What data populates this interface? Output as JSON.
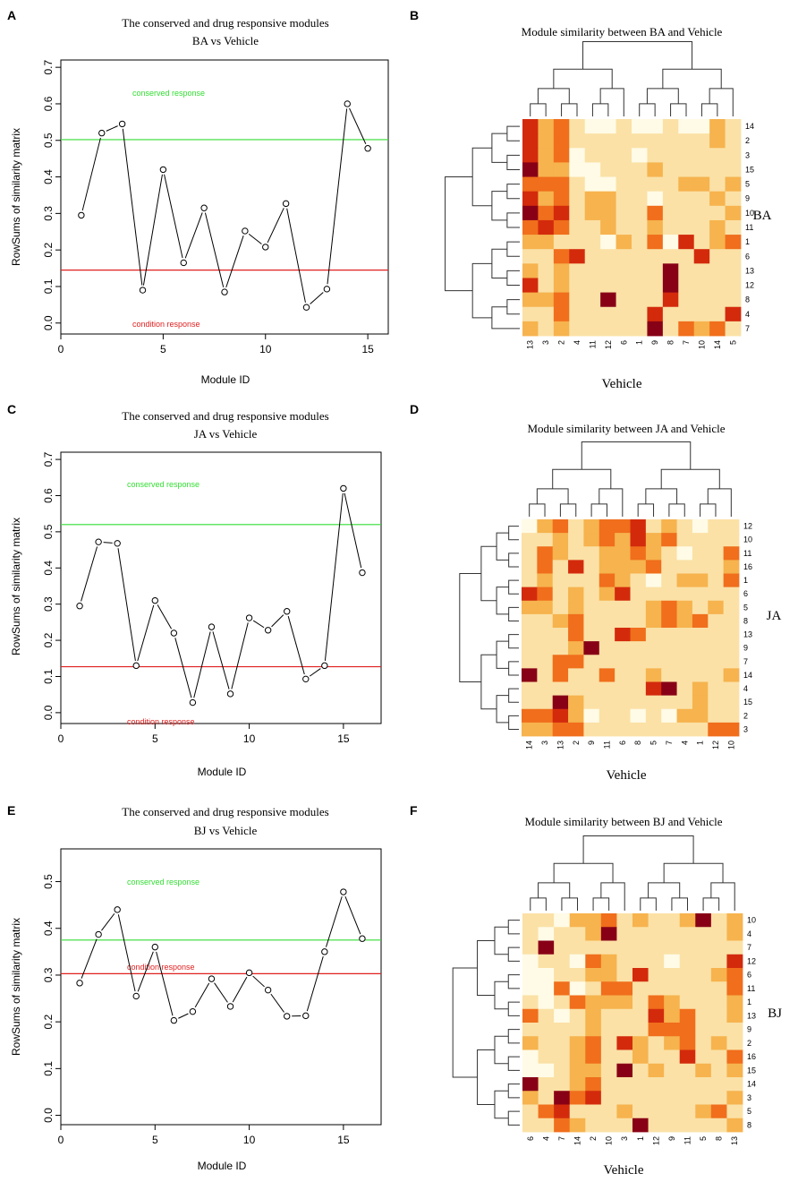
{
  "chart_data": [
    {
      "panel": "A",
      "type": "line",
      "title": "The conserved and drug responsive modules",
      "subtitle": "BA vs Vehicle",
      "xlabel": "Module ID",
      "ylabel": "RowSums of similarity matrix",
      "xlim": [
        0,
        16
      ],
      "ylim": [
        -0.03,
        0.72
      ],
      "xticks": [
        0,
        5,
        10,
        15
      ],
      "yticks": [
        0.0,
        0.1,
        0.2,
        0.3,
        0.4,
        0.5,
        0.6,
        0.7
      ],
      "x": [
        1,
        2,
        3,
        4,
        5,
        6,
        7,
        8,
        9,
        10,
        11,
        12,
        13,
        14,
        15
      ],
      "y": [
        0.295,
        0.52,
        0.545,
        0.09,
        0.42,
        0.165,
        0.315,
        0.085,
        0.252,
        0.208,
        0.327,
        0.043,
        0.093,
        0.6,
        0.478
      ],
      "conserved_line": 0.502,
      "condition_line": 0.145,
      "conserved_label": "conserved response",
      "condition_label": "condition response",
      "conserved_color": "#33dd33",
      "condition_color": "#e02020"
    },
    {
      "panel": "B",
      "type": "heatmap",
      "title": "Module similarity between BA and Vehicle",
      "xlabel": "Vehicle",
      "ylabel": "BA",
      "col_labels": [
        "13",
        "3",
        "2",
        "4",
        "11",
        "12",
        "6",
        "1",
        "9",
        "8",
        "7",
        "10",
        "14",
        "5"
      ],
      "row_labels": [
        "14",
        "2",
        "3",
        "15",
        "5",
        "9",
        "10",
        "11",
        "1",
        "6",
        "13",
        "12",
        "8",
        "4",
        "7"
      ],
      "values": [
        [
          4,
          2,
          3,
          1,
          0,
          0,
          1,
          0,
          0,
          1,
          0,
          0,
          2,
          1
        ],
        [
          4,
          2,
          3,
          1,
          1,
          1,
          1,
          1,
          1,
          1,
          1,
          1,
          2,
          1
        ],
        [
          4,
          2,
          3,
          0,
          1,
          1,
          1,
          0,
          1,
          1,
          1,
          1,
          1,
          1
        ],
        [
          5,
          2,
          2,
          0,
          0,
          1,
          1,
          1,
          2,
          1,
          1,
          1,
          1,
          1
        ],
        [
          3,
          3,
          3,
          1,
          0,
          0,
          1,
          1,
          1,
          1,
          2,
          2,
          1,
          2
        ],
        [
          4,
          2,
          3,
          1,
          2,
          2,
          1,
          1,
          0,
          1,
          1,
          1,
          2,
          1
        ],
        [
          5,
          3,
          4,
          1,
          2,
          2,
          1,
          1,
          3,
          1,
          1,
          1,
          1,
          2
        ],
        [
          3,
          4,
          3,
          1,
          1,
          2,
          1,
          1,
          2,
          1,
          1,
          1,
          2,
          1
        ],
        [
          2,
          2,
          1,
          1,
          1,
          0,
          2,
          1,
          3,
          0,
          4,
          1,
          2,
          3
        ],
        [
          1,
          1,
          3,
          4,
          1,
          1,
          1,
          1,
          1,
          1,
          1,
          4,
          1,
          1
        ],
        [
          2,
          1,
          2,
          1,
          1,
          1,
          1,
          1,
          1,
          5,
          1,
          1,
          1,
          1
        ],
        [
          4,
          1,
          2,
          1,
          1,
          1,
          1,
          1,
          1,
          5,
          1,
          1,
          1,
          1
        ],
        [
          2,
          2,
          3,
          1,
          1,
          5,
          1,
          1,
          1,
          4,
          1,
          1,
          1,
          1
        ],
        [
          1,
          1,
          3,
          1,
          1,
          1,
          1,
          1,
          4,
          1,
          1,
          1,
          1,
          4
        ],
        [
          2,
          1,
          2,
          1,
          1,
          1,
          1,
          1,
          5,
          1,
          3,
          2,
          3,
          1
        ]
      ]
    },
    {
      "panel": "C",
      "type": "line",
      "title": "The conserved and drug responsive modules",
      "subtitle": "JA vs Vehicle",
      "xlabel": "Module ID",
      "ylabel": "RowSums of similarity matrix",
      "xlim": [
        0,
        17
      ],
      "ylim": [
        -0.03,
        0.72
      ],
      "xticks": [
        0,
        5,
        10,
        15
      ],
      "yticks": [
        0.0,
        0.1,
        0.2,
        0.3,
        0.4,
        0.5,
        0.6,
        0.7
      ],
      "x": [
        1,
        2,
        3,
        4,
        5,
        6,
        7,
        8,
        9,
        10,
        11,
        12,
        13,
        14,
        15,
        16
      ],
      "y": [
        0.295,
        0.472,
        0.468,
        0.13,
        0.31,
        0.22,
        0.028,
        0.237,
        0.052,
        0.262,
        0.228,
        0.28,
        0.093,
        0.13,
        0.62,
        0.387
      ],
      "conserved_line": 0.52,
      "condition_line": 0.127,
      "conserved_label": "conserved response",
      "condition_label": "condition response",
      "conserved_color": "#33dd33",
      "condition_color": "#e02020"
    },
    {
      "panel": "D",
      "type": "heatmap",
      "title": "Module similarity between JA and Vehicle",
      "xlabel": "Vehicle",
      "ylabel": "JA",
      "col_labels": [
        "14",
        "3",
        "13",
        "2",
        "9",
        "11",
        "6",
        "8",
        "5",
        "7",
        "4",
        "1",
        "12",
        "10"
      ],
      "row_labels": [
        "12",
        "10",
        "11",
        "16",
        "1",
        "6",
        "5",
        "8",
        "13",
        "9",
        "7",
        "14",
        "4",
        "15",
        "2",
        "3"
      ],
      "values": [
        [
          0,
          2,
          3,
          1,
          2,
          3,
          3,
          4,
          1,
          2,
          1,
          0,
          1,
          1
        ],
        [
          1,
          1,
          2,
          1,
          2,
          3,
          2,
          4,
          2,
          3,
          1,
          1,
          1,
          1
        ],
        [
          1,
          3,
          2,
          1,
          1,
          2,
          2,
          3,
          2,
          1,
          0,
          1,
          1,
          3
        ],
        [
          1,
          3,
          1,
          4,
          1,
          2,
          2,
          2,
          3,
          1,
          1,
          1,
          1,
          2
        ],
        [
          1,
          2,
          1,
          1,
          1,
          3,
          2,
          1,
          0,
          1,
          2,
          2,
          1,
          3
        ],
        [
          4,
          3,
          1,
          2,
          1,
          2,
          4,
          1,
          1,
          1,
          1,
          1,
          1,
          1
        ],
        [
          2,
          2,
          1,
          2,
          1,
          1,
          1,
          1,
          2,
          3,
          2,
          1,
          2,
          1
        ],
        [
          1,
          1,
          2,
          3,
          1,
          1,
          1,
          1,
          2,
          3,
          2,
          3,
          1,
          1
        ],
        [
          1,
          1,
          1,
          3,
          1,
          1,
          4,
          3,
          1,
          1,
          1,
          1,
          1,
          1
        ],
        [
          1,
          1,
          1,
          2,
          5,
          1,
          1,
          1,
          1,
          1,
          1,
          1,
          1,
          1
        ],
        [
          1,
          1,
          3,
          3,
          1,
          1,
          1,
          1,
          1,
          1,
          1,
          1,
          1,
          1
        ],
        [
          5,
          1,
          3,
          1,
          1,
          3,
          1,
          1,
          2,
          1,
          1,
          1,
          1,
          2
        ],
        [
          1,
          1,
          1,
          1,
          1,
          1,
          1,
          1,
          4,
          5,
          1,
          2,
          1,
          1
        ],
        [
          1,
          1,
          5,
          2,
          1,
          1,
          1,
          1,
          1,
          1,
          1,
          2,
          1,
          1
        ],
        [
          3,
          3,
          4,
          2,
          0,
          1,
          1,
          0,
          1,
          0,
          2,
          2,
          1,
          1
        ],
        [
          2,
          2,
          3,
          3,
          1,
          1,
          1,
          1,
          1,
          1,
          1,
          1,
          3,
          3
        ]
      ]
    },
    {
      "panel": "E",
      "type": "line",
      "title": "The conserved and drug responsive modules",
      "subtitle": "BJ vs Vehicle",
      "xlabel": "Module ID",
      "ylabel": "RowSums of similarity matrix",
      "xlim": [
        0,
        17
      ],
      "ylim": [
        -0.02,
        0.57
      ],
      "xticks": [
        0,
        5,
        10,
        15
      ],
      "yticks": [
        0.0,
        0.1,
        0.2,
        0.3,
        0.4,
        0.5
      ],
      "x": [
        1,
        2,
        3,
        4,
        5,
        6,
        7,
        8,
        9,
        10,
        11,
        12,
        13,
        14,
        15,
        16
      ],
      "y": [
        0.283,
        0.387,
        0.44,
        0.255,
        0.36,
        0.203,
        0.222,
        0.292,
        0.233,
        0.305,
        0.268,
        0.212,
        0.213,
        0.35,
        0.478,
        0.378
      ],
      "conserved_line": 0.375,
      "condition_line": 0.303,
      "conserved_label": "conserved response",
      "condition_label": "condition response",
      "conserved_color": "#33dd33",
      "condition_color": "#e02020"
    },
    {
      "panel": "F",
      "type": "heatmap",
      "title": "Module similarity between BJ and Vehicle",
      "xlabel": "Vehicle",
      "ylabel": "BJ",
      "col_labels": [
        "6",
        "4",
        "7",
        "14",
        "2",
        "10",
        "3",
        "1",
        "12",
        "9",
        "11",
        "5",
        "8",
        "13"
      ],
      "row_labels": [
        "10",
        "4",
        "7",
        "12",
        "6",
        "11",
        "1",
        "13",
        "9",
        "2",
        "16",
        "15",
        "14",
        "3",
        "5",
        "8"
      ],
      "values": [
        [
          1,
          1,
          0,
          2,
          2,
          3,
          1,
          2,
          1,
          1,
          2,
          5,
          1,
          2
        ],
        [
          1,
          0,
          1,
          1,
          2,
          5,
          1,
          1,
          1,
          1,
          1,
          1,
          1,
          2
        ],
        [
          1,
          5,
          1,
          1,
          1,
          1,
          1,
          1,
          1,
          1,
          1,
          1,
          1,
          1
        ],
        [
          0,
          1,
          1,
          0,
          3,
          2,
          1,
          1,
          1,
          0,
          1,
          1,
          1,
          4
        ],
        [
          0,
          0,
          1,
          1,
          2,
          2,
          1,
          4,
          1,
          1,
          1,
          1,
          2,
          3
        ],
        [
          0,
          0,
          3,
          0,
          1,
          3,
          3,
          1,
          1,
          1,
          1,
          1,
          1,
          3
        ],
        [
          1,
          0,
          1,
          3,
          2,
          2,
          2,
          1,
          3,
          2,
          1,
          1,
          1,
          2
        ],
        [
          3,
          1,
          0,
          1,
          2,
          1,
          1,
          1,
          4,
          2,
          3,
          1,
          1,
          2
        ],
        [
          1,
          1,
          1,
          1,
          2,
          1,
          1,
          1,
          3,
          3,
          3,
          1,
          1,
          1
        ],
        [
          2,
          1,
          1,
          2,
          3,
          1,
          4,
          2,
          1,
          2,
          3,
          1,
          2,
          1
        ],
        [
          0,
          1,
          1,
          2,
          3,
          1,
          1,
          2,
          1,
          1,
          4,
          1,
          1,
          3
        ],
        [
          0,
          0,
          1,
          2,
          2,
          1,
          5,
          1,
          2,
          1,
          1,
          2,
          1,
          2
        ],
        [
          5,
          1,
          1,
          2,
          3,
          1,
          1,
          1,
          1,
          1,
          1,
          1,
          1,
          1
        ],
        [
          2,
          1,
          5,
          3,
          4,
          1,
          1,
          1,
          1,
          1,
          1,
          1,
          1,
          2
        ],
        [
          1,
          3,
          4,
          1,
          1,
          1,
          2,
          1,
          1,
          1,
          1,
          2,
          3,
          1
        ],
        [
          1,
          1,
          3,
          2,
          1,
          1,
          1,
          5,
          1,
          1,
          1,
          1,
          1,
          2
        ]
      ]
    }
  ],
  "colors": {
    "heat": [
      "#fffbe6",
      "#fbe1a6",
      "#f6b34e",
      "#f06e1c",
      "#d32a0c",
      "#880016"
    ]
  }
}
